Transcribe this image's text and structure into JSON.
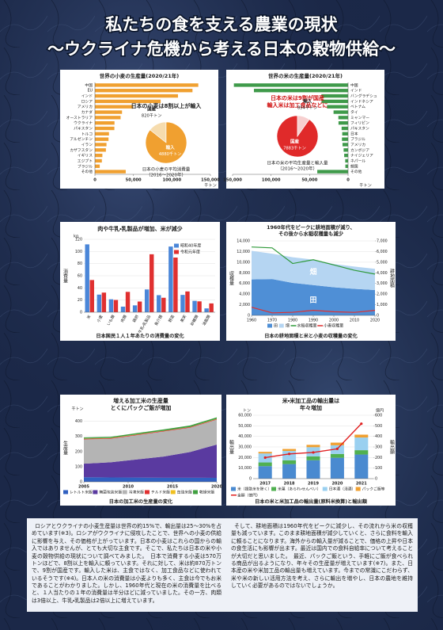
{
  "header": {
    "title": "私たちの食を支える農業の現状",
    "subtitle": "～ウクライナ危機から考える日本の穀物供給～"
  },
  "chart_data": [
    {
      "type": "hbar",
      "title": "世界の小麦の生産量(2020/21年)",
      "categories": [
        "中国",
        "EU",
        "インド",
        "ロシア",
        "アメリカ",
        "カナダ",
        "オーストラリア",
        "ウクライナ",
        "パキスタン",
        "トルコ",
        "アルゼンチン",
        "イラン",
        "カザフスタン",
        "イギリス",
        "エジプト",
        "ブラジル",
        "その他"
      ],
      "values": [
        134250,
        126690,
        107860,
        85350,
        49690,
        35180,
        33340,
        25420,
        25250,
        18250,
        17640,
        15000,
        14260,
        9660,
        9000,
        6250,
        40000
      ],
      "color": "#f0a030",
      "xlim": [
        0,
        150000
      ],
      "xticks": [
        0,
        {
          "value": 50000,
          "label": "50,000"
        },
        {
          "value": 100000,
          "label": "100,000"
        },
        {
          "value": 150000,
          "label": "150,000"
        }
      ],
      "x_label": "千トン"
    },
    {
      "type": "pie",
      "title": [
        "日本の小麦は8割以上が輸入"
      ],
      "caption": [
        "日本の小麦の平均消費量",
        "（2016～2020年）"
      ],
      "categories": [
        "国産",
        "輸入"
      ],
      "values": [
        820,
        4880
      ],
      "value_labels": [
        "820千トン",
        "4880千トン"
      ],
      "colors": [
        "#f6dcae",
        "#f0a030"
      ],
      "title_color": "#222222"
    },
    {
      "type": "hbar",
      "title": "世界の米の生産量(2020/21年)",
      "categories": [
        "中国",
        "インド",
        "バングラデシュ",
        "インドネシア",
        "ベトナム",
        "タイ",
        "ミャンマー",
        "フィリピン",
        "パキスタン",
        "日本",
        "ブラジル",
        "アメリカ",
        "カンボジア",
        "ナイジェリア",
        "ネパール",
        "韓国",
        "その他"
      ],
      "values": [
        148300,
        122270,
        34600,
        34500,
        27380,
        18860,
        12600,
        12420,
        8400,
        7570,
        7950,
        7220,
        5800,
        5040,
        3700,
        3510,
        40000
      ],
      "color": "#3f9a4a",
      "xlim": [
        150000,
        0
      ],
      "xticks": [
        {
          "value": 150000,
          "label": "150,000"
        },
        {
          "value": 100000,
          "label": "100,000"
        },
        {
          "value": 50000,
          "label": "50,000"
        },
        0
      ],
      "x_label": "千トン"
    },
    {
      "type": "pie",
      "title": [
        "日本の米は9割が国産",
        "輸入米は加工食品などに"
      ],
      "caption": [
        "日本の米の平均生産量と輸入量",
        "（2016～2020年）"
      ],
      "categories": [
        "国産",
        "輸入"
      ],
      "values": [
        7883,
        854
      ],
      "value_labels": [
        "7883千トン",
        "854千トン"
      ],
      "colors": [
        "#e02a2a",
        "#f7d0d0"
      ],
      "title_color": "#d01010"
    },
    {
      "type": "bar",
      "title": [
        "肉や牛乳・乳製品が増加、米が減少"
      ],
      "y_unit": "kg",
      "y_label": "消費量",
      "categories": [
        "米",
        "小麦",
        "いも類",
        "肉類",
        "鶏卵",
        "牛乳・乳製品",
        "魚介類",
        "野菜",
        "果実",
        "砂糖類",
        "油脂類"
      ],
      "series": [
        {
          "name": "昭和40年度",
          "color": "#4a86d8",
          "values": [
            111.7,
            29.0,
            21.3,
            9.2,
            11.3,
            37.5,
            28.1,
            108.1,
            28.5,
            18.7,
            6.3
          ]
        },
        {
          "name": "令和元年度",
          "color": "#e03030",
          "values": [
            53.0,
            32.3,
            20.2,
            33.5,
            17.6,
            95.4,
            23.8,
            90.0,
            34.2,
            17.9,
            14.5
          ]
        }
      ],
      "ylim": [
        0,
        120
      ],
      "yticks": [
        0,
        20,
        40,
        60,
        80,
        100,
        120
      ],
      "caption": "日本国民１人１年あたりの消費量の変化"
    },
    {
      "type": "combo",
      "title": [
        "1960年代をピークに耕地面積が減り、",
        "その後から水稲収穫量も減少"
      ],
      "y_label": "収穫量",
      "y2_label": "耕地面積",
      "x": [
        1960,
        1970,
        1980,
        1990,
        2000,
        2010,
        2020
      ],
      "xlim": [
        1960,
        2020
      ],
      "xticks": [
        1960,
        1970,
        1980,
        1990,
        2000,
        2010,
        2020
      ],
      "ylim": [
        0,
        14000
      ],
      "yticks": [
        0,
        {
          "value": 2000,
          "label": "2,000"
        },
        {
          "value": 4000,
          "label": "4,000"
        },
        {
          "value": 6000,
          "label": "6,000"
        },
        {
          "value": 8000,
          "label": "8,000"
        },
        {
          "value": 10000,
          "label": "10,000"
        },
        {
          "value": 12000,
          "label": "12,000"
        },
        {
          "value": 14000,
          "label": "14,000"
        }
      ],
      "y2lim": [
        0,
        7000
      ],
      "y2ticks": [
        0,
        {
          "value": 1000,
          "label": "1,000"
        },
        {
          "value": 2000,
          "label": "2,000"
        },
        {
          "value": 3000,
          "label": "3,000"
        },
        {
          "value": 4000,
          "label": "4,000"
        },
        {
          "value": 5000,
          "label": "5,000"
        },
        {
          "value": 6000,
          "label": "6,000"
        },
        {
          "value": 7000,
          "label": "7,000"
        }
      ],
      "series": [
        {
          "name": "田",
          "kind": "area",
          "axis": "y2",
          "color": "#4f8fd6",
          "values": [
            3381,
            3415,
            3055,
            2846,
            2641,
            2496,
            2379
          ]
        },
        {
          "name": "畑",
          "kind": "area",
          "axis": "y2",
          "color": "#b5d5f2",
          "values": [
            2690,
            2381,
            2406,
            2397,
            2189,
            2097,
            1993
          ]
        },
        {
          "name": "水稲収穫量",
          "kind": "line",
          "color": "#2f9a3a",
          "values": [
            12858,
            12689,
            9751,
            10463,
            9490,
            8483,
            7763
          ]
        },
        {
          "name": "小麦収穫量",
          "kind": "line",
          "color": "#e03030",
          "values": [
            1531,
            474,
            583,
            952,
            688,
            571,
            949
          ]
        }
      ],
      "caption": "日本の耕地面積と米と小麦の収穫量の変化"
    },
    {
      "type": "stacked_area",
      "title": [
        "増える加工米の生産量",
        "とくにパックご飯が増加"
      ],
      "y_unit": "千トン",
      "y_label": "生産量",
      "x": [
        2005,
        2008,
        2011,
        2014,
        2017,
        2020
      ],
      "xlim": [
        2005,
        2020
      ],
      "xticks": [
        2005,
        2010,
        2015,
        2020
      ],
      "ylim": [
        0,
        450
      ],
      "yticks": [
        0,
        100,
        200,
        300,
        400
      ],
      "series": [
        {
          "name": "レトルト米飯",
          "color": "#3060c0",
          "values": [
            30,
            29,
            28,
            27,
            27,
            26
          ]
        },
        {
          "name": "無菌包装米飯",
          "color": "#5a3aa0",
          "values": [
            90,
            100,
            120,
            140,
            170,
            220
          ]
        },
        {
          "name": "冷凍米飯",
          "color": "#b4b4b4",
          "values": [
            160,
            155,
            160,
            165,
            160,
            165
          ]
        },
        {
          "name": "チルド米飯",
          "color": "#e03030",
          "values": [
            4,
            4,
            4,
            4,
            4,
            4
          ]
        },
        {
          "name": "缶詰米飯",
          "color": "#f0c020",
          "values": [
            1,
            1,
            1,
            1,
            1,
            1
          ]
        },
        {
          "name": "乾燥米飯",
          "color": "#40a040",
          "values": [
            8,
            8,
            9,
            9,
            10,
            10
          ]
        }
      ],
      "caption": "日本の加工米の生産量の変化"
    },
    {
      "type": "stacked_bar_line",
      "title": [
        "米・米加工品の輸出量は",
        "年々増加"
      ],
      "y_unit": "トン",
      "y_label": "輸出量",
      "y2_unit": "億円",
      "y2_label": "輸出額",
      "x": [
        2017,
        2018,
        2019,
        2020,
        2021
      ],
      "ylim": [
        0,
        60000
      ],
      "yticks": [
        0,
        {
          "value": 10000,
          "label": "10,000"
        },
        {
          "value": 20000,
          "label": "20,000"
        },
        {
          "value": 30000,
          "label": "30,000"
        },
        {
          "value": 40000,
          "label": "40,000"
        },
        {
          "value": 50000,
          "label": "50,000"
        },
        {
          "value": 60000,
          "label": "60,000"
        }
      ],
      "y2lim": [
        0,
        600
      ],
      "y2ticks": [
        0,
        100,
        200,
        300,
        400,
        500,
        600
      ],
      "series": [
        {
          "name": "米（援助米を除く）",
          "color": "#4a8ad0",
          "values": [
            11841,
            13794,
            17381,
            19781,
            22833
          ]
        },
        {
          "name": "米菓（あられ・せんべい）",
          "color": "#50b050",
          "values": [
            3500,
            3600,
            3700,
            3600,
            4100
          ]
        },
        {
          "name": "日本酒（清酒）",
          "color": "#9ad0f0",
          "values": [
            8500,
            8800,
            8700,
            8200,
            12000
          ]
        },
        {
          "name": "パックご飯等",
          "color": "#f0a030",
          "values": [
            1500,
            1900,
            2200,
            2500,
            2700
          ]
        },
        {
          "name": "金額（億円）",
          "axis": "y2",
          "color": "#e02020",
          "values": [
            199,
            234,
            248,
            282,
            520
          ]
        }
      ],
      "caption": "日本の米と米加工品の輸出量(原料米換算)と輸出額"
    }
  ],
  "body": {
    "left": "ロシアとウクライナの小麦生産量は世界の約15%で、輸出量は25～30%を占めています(※3)。ロシアがウクライナに侵攻したことで、世界への小麦の供給に影響を与え、その価格が上がっています。日本の小麦はこれらの国からの輸入ではありませんが、とても大切な主食です。そこで、私たちは日本の米や小麦の穀物供給の現状について調べてみました。　日本で消費する小麦は570万トンほどで、8割以上を輸入に頼っています。それに対して、米は約870万トンで、9割が国産です。輸入した米は、主食ではなく、加工食品などに使われているそうです(※4)。日本人の米の消費量は小麦よりも多く、主食は今でもお米であることがわかりました。しかし、1960年代と現在の米の消費量を比べると、１人当たりの１年の消費量は半分ほどに減っていました。その一方、肉類は3倍以上、牛乳・乳製品は2倍以上に増えています。",
    "right": "そして、耕地面積は1960年代をピークに減少し、その流れから米の収穫量も減っています。このまま耕地面積が減少していくと、さらに食料を輸入に頼ることになります。海外からの輸入量が減ることで、価格の上昇や日本の食生活にも影響が出ます。最近は国内での食料自給率について考えることが大切だと思いました。　最近、パックご飯という、手軽にご飯が食べられる商品が出るようになり、年々その生産量が増えています(※7)。また、日本産の米や米加工品の輸出量も増えています。今までの常識にこだわらず、米や米の新しい活用方法を考え、さらに輸出を増やし、日本の農地を維持していく必要があるのではないでしょうか。"
  }
}
